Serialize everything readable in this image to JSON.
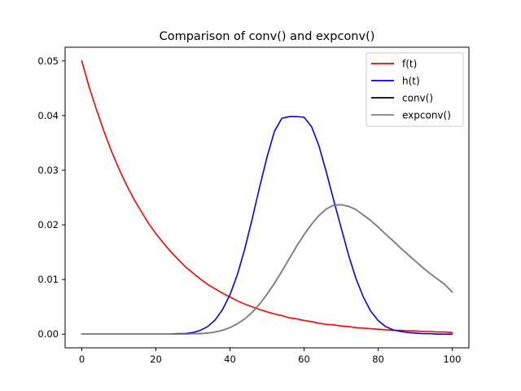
{
  "chart_data": {
    "type": "line",
    "title": "Comparison of conv() and expconv()",
    "xlabel": "",
    "ylabel": "",
    "xlim": [
      -4.5,
      104.5
    ],
    "ylim": [
      -0.0025,
      0.0525
    ],
    "xticks": [
      0,
      20,
      40,
      60,
      80,
      100
    ],
    "xtick_labels": [
      "0",
      "20",
      "40",
      "60",
      "80",
      "100"
    ],
    "yticks": [
      0.0,
      0.01,
      0.02,
      0.03,
      0.04,
      0.05
    ],
    "ytick_labels": [
      "0.00",
      "0.01",
      "0.02",
      "0.03",
      "0.04",
      "0.05"
    ],
    "grid": false,
    "legend_position": "top-right",
    "x": [
      0,
      2,
      4,
      6,
      8,
      10,
      12,
      14,
      16,
      18,
      20,
      22,
      24,
      26,
      28,
      30,
      32,
      34,
      36,
      38,
      40,
      42,
      44,
      46,
      48,
      50,
      52,
      54,
      56,
      58,
      60,
      62,
      64,
      66,
      68,
      70,
      72,
      74,
      76,
      78,
      80,
      82,
      84,
      86,
      88,
      90,
      92,
      94,
      96,
      98,
      100
    ],
    "series": [
      {
        "name": "f(t)",
        "color": "#ff0000",
        "values": [
          0.05,
          0.0452,
          0.041,
          0.0371,
          0.0335,
          0.0303,
          0.0274,
          0.0248,
          0.0225,
          0.0203,
          0.0184,
          0.0167,
          0.0151,
          0.0137,
          0.0123,
          0.0112,
          0.0101,
          0.0091,
          0.0083,
          0.0075,
          0.0068,
          0.0061,
          0.0055,
          0.005,
          0.0045,
          0.0041,
          0.0037,
          0.0034,
          0.003,
          0.0028,
          0.0025,
          0.0023,
          0.002,
          0.0018,
          0.0017,
          0.0015,
          0.0014,
          0.0012,
          0.0011,
          0.001,
          0.0009,
          0.0008,
          0.0007,
          0.0007,
          0.0006,
          0.0006,
          0.0005,
          0.0005,
          0.0004,
          0.0004,
          0.0003
        ]
      },
      {
        "name": "h(t)",
        "color": "#0000ff",
        "values": [
          0,
          0,
          0,
          0,
          0,
          0,
          0,
          0,
          0,
          0,
          0,
          0,
          0,
          0.0001,
          0.0001,
          0.0003,
          0.0007,
          0.0014,
          0.0026,
          0.0045,
          0.0072,
          0.0109,
          0.0156,
          0.0211,
          0.0269,
          0.0324,
          0.0371,
          0.0395,
          0.0398,
          0.0398,
          0.0397,
          0.038,
          0.0345,
          0.0297,
          0.0245,
          0.0195,
          0.0145,
          0.0102,
          0.0068,
          0.0042,
          0.0025,
          0.0014,
          0.0008,
          0.0005,
          0.0003,
          0.0002,
          0.0001,
          0.0001,
          0,
          0,
          0
        ]
      },
      {
        "name": "conv()",
        "color": "#000000",
        "values": [
          0,
          0,
          0,
          0,
          0,
          0,
          0,
          0,
          0,
          0,
          0,
          0,
          0,
          0,
          0,
          0.0001,
          0.0001,
          0.0002,
          0.0004,
          0.0007,
          0.0012,
          0.0019,
          0.0028,
          0.004,
          0.0055,
          0.0073,
          0.0093,
          0.0115,
          0.0138,
          0.0161,
          0.0182,
          0.0201,
          0.0217,
          0.0229,
          0.0236,
          0.0237,
          0.0234,
          0.0228,
          0.0218,
          0.0208,
          0.0196,
          0.0183,
          0.0171,
          0.0158,
          0.0146,
          0.0134,
          0.0122,
          0.0111,
          0.0101,
          0.0091,
          0.0077
        ]
      },
      {
        "name": "expconv()",
        "color": "#808080",
        "values": [
          0,
          0,
          0,
          0,
          0,
          0,
          0,
          0,
          0,
          0,
          0,
          0,
          0,
          0,
          0,
          0.0001,
          0.0001,
          0.0002,
          0.0004,
          0.0007,
          0.0012,
          0.0019,
          0.0028,
          0.004,
          0.0055,
          0.0073,
          0.0093,
          0.0115,
          0.0138,
          0.0161,
          0.0182,
          0.0201,
          0.0217,
          0.0229,
          0.0236,
          0.0237,
          0.0234,
          0.0228,
          0.0218,
          0.0208,
          0.0196,
          0.0183,
          0.0171,
          0.0158,
          0.0146,
          0.0134,
          0.0122,
          0.0111,
          0.0101,
          0.0091,
          0.0077
        ]
      }
    ]
  }
}
